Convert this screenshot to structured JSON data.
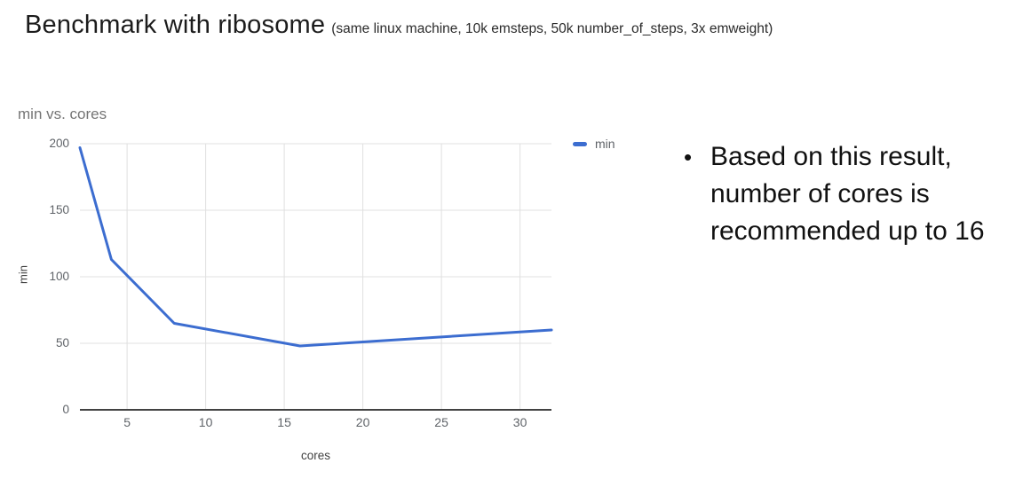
{
  "slide": {
    "title": "Benchmark with ribosome",
    "subtitle": "(same linux machine, 10k emsteps, 50k number_of_steps, 3x emweight)",
    "bullet_marker": "•",
    "bullet": "Based on this result, number of cores is recommended up to 16"
  },
  "chart_data": {
    "type": "line",
    "title": "min vs. cores",
    "xlabel": "cores",
    "ylabel": "min",
    "x": [
      2,
      4,
      8,
      16,
      32
    ],
    "series": [
      {
        "name": "min",
        "values": [
          197,
          113,
          65,
          48,
          60
        ]
      }
    ],
    "xlim": [
      2,
      32
    ],
    "ylim": [
      0,
      200
    ],
    "xticks": [
      5,
      10,
      15,
      20,
      25,
      30
    ],
    "yticks": [
      0,
      50,
      100,
      150,
      200
    ],
    "grid": true,
    "legend_position": "right-top"
  },
  "colors": {
    "series_line": "#3c6dd0",
    "gridline": "#e0e0e0",
    "axis_line": "#424242",
    "tick_label": "#5f6368",
    "chart_title": "#757575"
  }
}
